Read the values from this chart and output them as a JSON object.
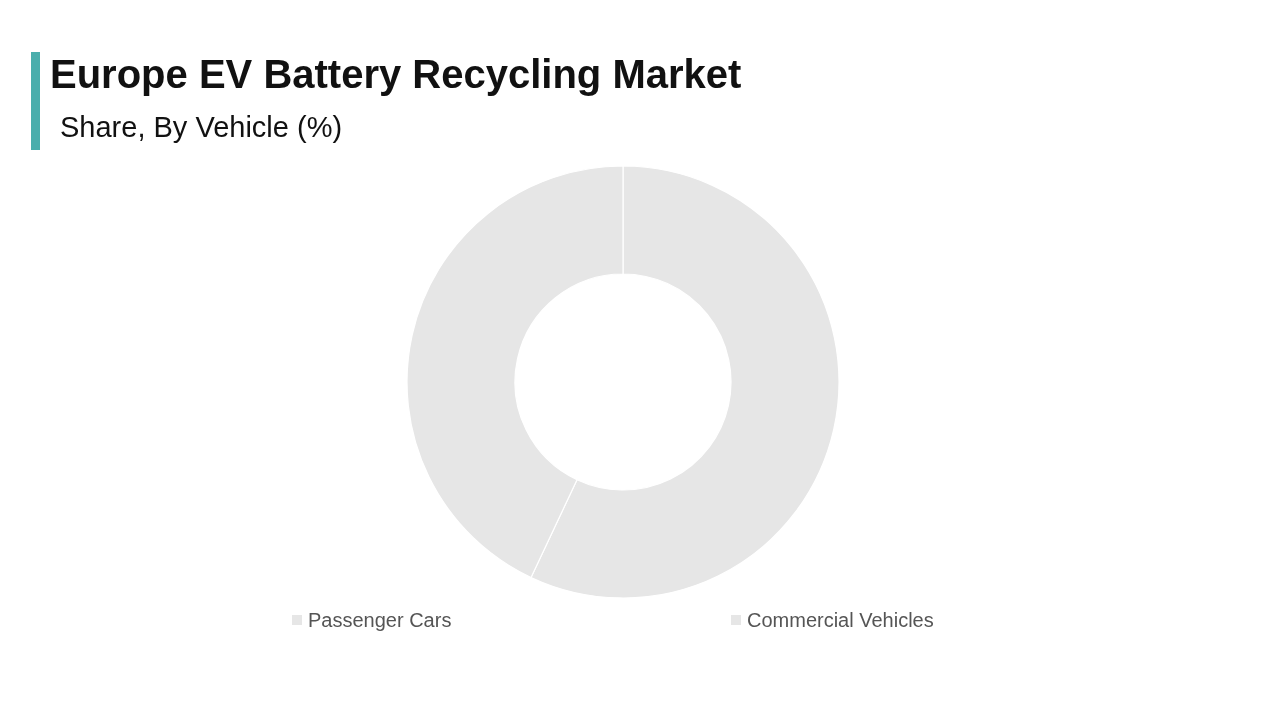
{
  "chart_data": {
    "type": "donut",
    "title": "Europe EV Battery Recycling Market",
    "subtitle": "Share, By Vehicle (%)",
    "categories": [
      "Passenger Cars",
      "Commercial Vehicles"
    ],
    "values": [
      57,
      43
    ],
    "colors": [
      "#e6e6e6",
      "#e6e6e6"
    ],
    "legend": "bottom"
  }
}
